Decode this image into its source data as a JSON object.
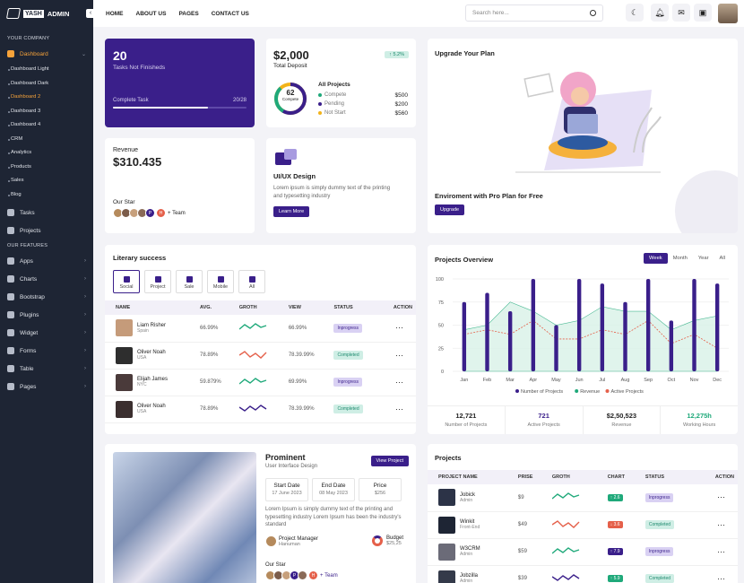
{
  "brand": {
    "box": "YASH",
    "text": "ADMIN"
  },
  "sidebar": {
    "section_company": "YOUR COMPANY",
    "dashboard": "Dashboard",
    "sub": [
      "Dashboard Light",
      "Dashboard Dark",
      "Dashboard 2",
      "Dashboard 3",
      "Dashboard 4",
      "CRM",
      "Analytics",
      "Products",
      "Sales",
      "Blog"
    ],
    "tasks": "Tasks",
    "projects": "Projects",
    "section_features": "OUR FEATURES",
    "features": [
      "Apps",
      "Charts",
      "Bootstrap",
      "Plugins",
      "Widget",
      "Forms",
      "Table",
      "Pages"
    ]
  },
  "topbar": {
    "nav": [
      "HOME",
      "ABOUT US",
      "PAGES",
      "CONTACT US"
    ],
    "search_placeholder": "Search here..."
  },
  "tasks_card": {
    "count": "20",
    "label": "Tasks Not Finisheds",
    "complete": "Complete Task",
    "progress_text": "20/28",
    "progress": 0.714
  },
  "deposit": {
    "amount": "$2,000",
    "label": "Total Deposit",
    "badge": "↑ 5.2%",
    "donut_value": "62",
    "donut_label": "Compete",
    "all_projects": "All Projects",
    "rows": [
      {
        "label": "Compete",
        "value": "$500",
        "color": "#1fa97a"
      },
      {
        "label": "Pending",
        "value": "$200",
        "color": "#3a1f8a"
      },
      {
        "label": "Not Start",
        "value": "$560",
        "color": "#f2b31a"
      }
    ]
  },
  "upgrade": {
    "title": "Upgrade Your Plan",
    "subtitle": "Enviroment with Pro Plan for Free",
    "button": "Upgrade"
  },
  "revenue": {
    "label": "Revenue",
    "value": "$310.435",
    "our_star": "Our Star",
    "team": "+ Team",
    "initials": [
      "P",
      "H"
    ]
  },
  "uiux": {
    "title": "UI/UX Design",
    "text": "Lorem ipsum is simply dummy text of the printing and typesetting industry",
    "button": "Learn More"
  },
  "literary": {
    "title": "Literary success",
    "tabs": [
      "Social",
      "Project",
      "Sale",
      "Mobile",
      "All"
    ],
    "headers": [
      "NAME",
      "AVG.",
      "GROTH",
      "VIEW",
      "STATUS",
      "ACTION"
    ],
    "rows": [
      {
        "name": "Liam Risher",
        "sub": "Spain",
        "avg": "66.99%",
        "view": "66.99%",
        "status": "Inprogress",
        "spark": "green"
      },
      {
        "name": "Oliver Noah",
        "sub": "USA",
        "avg": "78.89%",
        "view": "78.39.99%",
        "status": "Completed",
        "spark": "red"
      },
      {
        "name": "Elijah James",
        "sub": "NYC",
        "avg": "59.879%",
        "view": "69.99%",
        "status": "Inprogress",
        "spark": "green"
      },
      {
        "name": "Oliver Noah",
        "sub": "USA",
        "avg": "78.89%",
        "view": "78.39.99%",
        "status": "Completed",
        "spark": "purple"
      }
    ]
  },
  "overview": {
    "title": "Projects Overview",
    "periods": [
      "Week",
      "Month",
      "Year",
      "All"
    ],
    "stats": [
      {
        "value": "12,721",
        "label": "Number of Projects"
      },
      {
        "value": "721",
        "label": "Active Projects",
        "color": "#3a1f8a"
      },
      {
        "value": "$2,50,523",
        "label": "Revenue"
      },
      {
        "value": "12,275h",
        "label": "Working Hours",
        "color": "#1fa97a"
      }
    ]
  },
  "chart_data": {
    "type": "bar",
    "categories": [
      "Jan",
      "Feb",
      "Mar",
      "Apr",
      "May",
      "Jun",
      "Jul",
      "Aug",
      "Sep",
      "Oct",
      "Nov",
      "Dec"
    ],
    "ylim": [
      0,
      100
    ],
    "yticks": [
      0,
      25,
      50,
      75,
      100
    ],
    "series": [
      {
        "name": "Number of Projects",
        "type": "bar",
        "color": "#3a1f8a",
        "values": [
          75,
          85,
          65,
          100,
          50,
          100,
          95,
          75,
          100,
          55,
          100,
          95
        ]
      },
      {
        "name": "Revenue",
        "type": "area",
        "color": "#1fa97a",
        "values": [
          45,
          50,
          75,
          65,
          50,
          55,
          70,
          65,
          65,
          45,
          55,
          60
        ]
      },
      {
        "name": "Active Projects",
        "type": "line",
        "color": "#e5604a",
        "values": [
          40,
          45,
          40,
          55,
          35,
          35,
          45,
          40,
          55,
          30,
          40,
          25
        ]
      }
    ]
  },
  "prominent": {
    "title": "Prominent",
    "subtitle": "User Interface Design",
    "button": "View Project",
    "start_label": "Start Date",
    "start": "17 June 2023",
    "end_label": "End Date",
    "end": "08 May 2023",
    "price_label": "Price",
    "price": "$256",
    "text": "Lorem Ipsum is simply dummy text of the printing and typesetting industry Lorem Ipsum has been the industry's standard",
    "pm_label": "Project Manager",
    "pm_name": "Hanuman",
    "budget_label": "Budget",
    "budget": "$25,25",
    "our_star": "Our Star",
    "team": "+ Team"
  },
  "projects": {
    "title": "Projects",
    "headers": [
      "PROJECT NAME",
      "PRISE",
      "GROTH",
      "CHART",
      "STATUS",
      "ACTION"
    ],
    "rows": [
      {
        "name": "Jobick",
        "sub": "Admin",
        "price": "$9",
        "chart": "↑ 2.6",
        "chart_color": "#1fa97a",
        "status": "Inprogress",
        "spark": "green"
      },
      {
        "name": "Winkit",
        "sub": "Front-End",
        "price": "$49",
        "chart": "↓ 3.6",
        "chart_color": "#e5604a",
        "status": "Completed",
        "spark": "red"
      },
      {
        "name": "W3CRM",
        "sub": "Admin",
        "price": "$59",
        "chart": "↑ 7.9",
        "chart_color": "#3a1f8a",
        "status": "Inprogress",
        "spark": "green"
      },
      {
        "name": "Jobzilla",
        "sub": "Admin",
        "price": "$39",
        "chart": "↑ 5.9",
        "chart_color": "#1fa97a",
        "status": "Completed",
        "spark": "purple"
      }
    ]
  }
}
